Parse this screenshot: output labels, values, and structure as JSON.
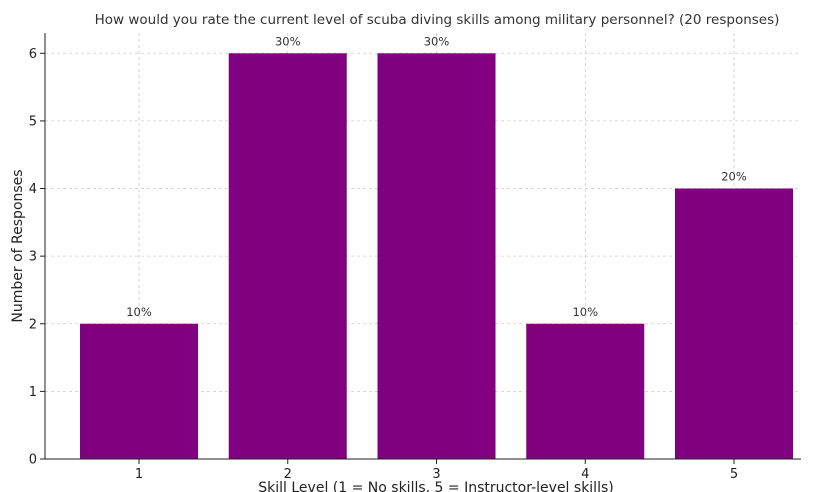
{
  "chart_data": {
    "type": "bar",
    "title": "How would you rate the current level of scuba diving skills among military personnel? (20 responses)",
    "xlabel": "Skill Level (1 = No skills, 5 = Instructor-level skills)",
    "ylabel": "Number of Responses",
    "categories": [
      "1",
      "2",
      "3",
      "4",
      "5"
    ],
    "values": [
      2,
      6,
      6,
      2,
      4
    ],
    "data_labels": [
      "10%",
      "30%",
      "30%",
      "10%",
      "20%"
    ],
    "yticks": [
      0,
      1,
      2,
      3,
      4,
      5,
      6
    ],
    "ylim": [
      0,
      6.3
    ],
    "grid": true,
    "bar_color": "#800080"
  }
}
